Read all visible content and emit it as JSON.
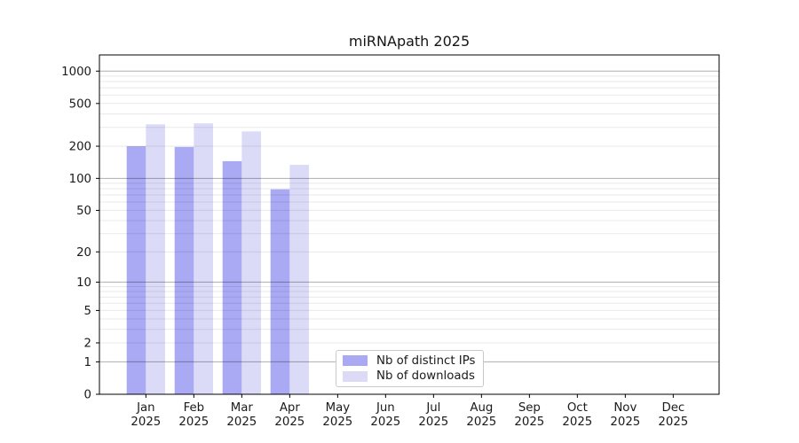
{
  "chart_data": {
    "type": "bar",
    "title": "miRNApath 2025",
    "categories": [
      "Jan",
      "Feb",
      "Mar",
      "Apr",
      "May",
      "Jun",
      "Jul",
      "Aug",
      "Sep",
      "Oct",
      "Nov",
      "Dec"
    ],
    "year": "2025",
    "series": [
      {
        "name": "Nb of distinct IPs",
        "color": "#a9a9f4",
        "values": [
          200,
          197,
          145,
          79,
          0,
          0,
          0,
          0,
          0,
          0,
          0,
          0
        ]
      },
      {
        "name": "Nb of downloads",
        "color": "#dbdbf8",
        "values": [
          320,
          327,
          275,
          134,
          0,
          0,
          0,
          0,
          0,
          0,
          0,
          0
        ]
      }
    ],
    "y_axis": {
      "scale": "log1p",
      "ticks": [
        0,
        1,
        2,
        5,
        10,
        20,
        50,
        100,
        200,
        500,
        1000
      ],
      "major_ticks": [
        1,
        10,
        100,
        1000
      ],
      "max": 1414
    },
    "grid": {
      "enabled": true,
      "minor": true,
      "position": "above-bars"
    },
    "legend_position": "lower center inside",
    "colors": {
      "frame": "#000000",
      "major_grid": "rgba(0,0,0,0.32)",
      "minor_grid": "rgba(0,0,0,0.09)",
      "tick_text": "#1a1a1a",
      "background": "#ffffff"
    }
  }
}
